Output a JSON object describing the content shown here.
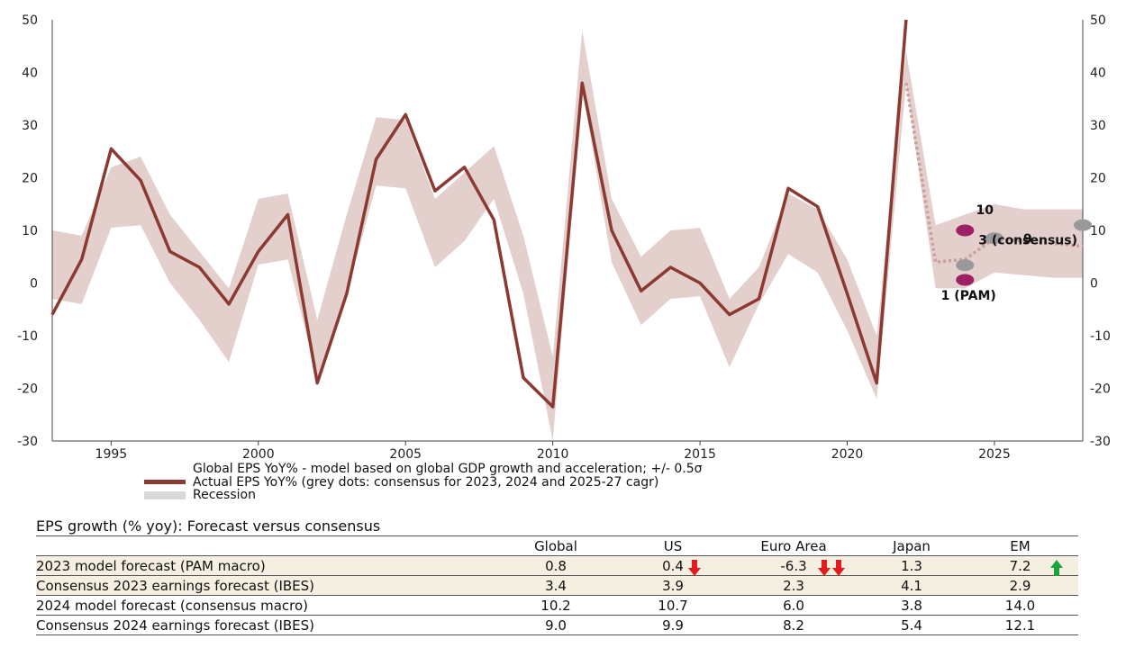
{
  "chart_data": {
    "type": "line",
    "x_ticks": [
      1995,
      2000,
      2005,
      2010,
      2015,
      2020,
      2025
    ],
    "y_ticks": [
      50,
      40,
      30,
      20,
      10,
      0,
      -10,
      -20,
      -30
    ],
    "xlim": [
      1993,
      2028
    ],
    "ylim": [
      -30,
      50
    ],
    "grid": false,
    "series": [
      {
        "name": "Actual EPS YoY% (grey dots: consensus for 2023, 2024 and 2025-27 cagr)",
        "color": "#8b3a32",
        "x": [
          1993,
          1994,
          1995,
          1996,
          1997,
          1998,
          1999,
          2000,
          2001,
          2002,
          2003,
          2004,
          2005,
          2006,
          2007,
          2008,
          2009,
          2010,
          2011,
          2012,
          2013,
          2014,
          2015,
          2016,
          2017,
          2018,
          2019,
          2020,
          2021,
          2022
        ],
        "y": [
          -6,
          4.5,
          25.5,
          19.5,
          6,
          3,
          -4,
          6,
          13,
          -19,
          -2,
          23.5,
          32,
          17.5,
          22,
          12,
          -18,
          -23.5,
          38,
          10,
          -1.5,
          3,
          0,
          -6,
          -3,
          18,
          14.5,
          -2,
          -19,
          50
        ]
      }
    ],
    "band": {
      "name": "Global EPS YoY% - model based on global GDP growth and acceleration; +/- 0.5σ",
      "color": "#e3cfcc",
      "x": [
        1993,
        1994,
        1995,
        1996,
        1997,
        1998,
        1999,
        2000,
        2001,
        2002,
        2003,
        2004,
        2005,
        2006,
        2007,
        2008,
        2009,
        2010,
        2011,
        2012,
        2013,
        2014,
        2015,
        2016,
        2017,
        2018,
        2019,
        2020,
        2021,
        2022,
        2023,
        2024,
        2025,
        2026,
        2027,
        2028
      ],
      "upper": [
        10,
        9,
        22,
        24,
        13,
        6,
        -1,
        16,
        17,
        -7,
        13,
        31.5,
        31,
        16,
        21,
        26,
        9,
        -14,
        48,
        16,
        5,
        10,
        10.5,
        -3,
        3,
        17,
        14,
        4.5,
        -10,
        44,
        11,
        13,
        15,
        14,
        14,
        14
      ],
      "lower": [
        -3,
        -4,
        10.5,
        11,
        0,
        -7,
        -15,
        3.5,
        4.5,
        -18,
        -2,
        18.5,
        18,
        3,
        8,
        16,
        -2,
        -30,
        37,
        4,
        -8,
        -3,
        -2.5,
        -16,
        -4,
        5.5,
        2,
        -9,
        -22,
        38,
        -1,
        -1,
        2,
        1.5,
        1,
        1
      ]
    },
    "forecast_line": {
      "color": "#c9a09a",
      "x": [
        2022,
        2023,
        2024,
        2025,
        2028
      ],
      "y": [
        38,
        4,
        4.5,
        8.5,
        7
      ]
    },
    "points": [
      {
        "x": 2024,
        "y": 10,
        "color": "#9e1f63",
        "label": "10"
      },
      {
        "x": 2025,
        "y": 8.5,
        "color": "#999999",
        "label": "9"
      },
      {
        "x": 2024,
        "y": 3.4,
        "color": "#999999",
        "label": "3 (consensus)"
      },
      {
        "x": 2024,
        "y": 0.6,
        "color": "#9e1f63",
        "label": "1 (PAM)"
      },
      {
        "x": 2028,
        "y": 11,
        "color": "#999999",
        "label": ""
      }
    ]
  },
  "legend": {
    "band": "Global EPS YoY% - model based on global GDP growth and acceleration; +/- 0.5σ",
    "actual": "Actual EPS YoY% (grey dots: consensus for 2023, 2024 and 2025-27 cagr)",
    "recession": "Recession"
  },
  "table": {
    "title": "EPS growth (% yoy): Forecast versus consensus",
    "columns": [
      "",
      "Global",
      "US",
      "Euro Area",
      "Japan",
      "EM"
    ],
    "rows": [
      {
        "label": "2023 model forecast (PAM macro)",
        "values": [
          "0.8",
          "0.4",
          "-6.3",
          "1.3",
          "7.2"
        ],
        "highlight": true
      },
      {
        "label": "Consensus 2023 earnings forecast (IBES)",
        "values": [
          "3.4",
          "3.9",
          "2.3",
          "4.1",
          "2.9"
        ],
        "highlight": true
      },
      {
        "label": "2024 model forecast (consensus macro)",
        "values": [
          "10.2",
          "10.7",
          "6.0",
          "3.8",
          "14.0"
        ],
        "highlight": false
      },
      {
        "label": "Consensus 2024 earnings forecast (IBES)",
        "values": [
          "9.0",
          "9.9",
          "8.2",
          "5.4",
          "12.1"
        ],
        "highlight": false
      }
    ],
    "arrow_colors": {
      "down": "#e31b1b",
      "up": "#1aa53a"
    }
  }
}
